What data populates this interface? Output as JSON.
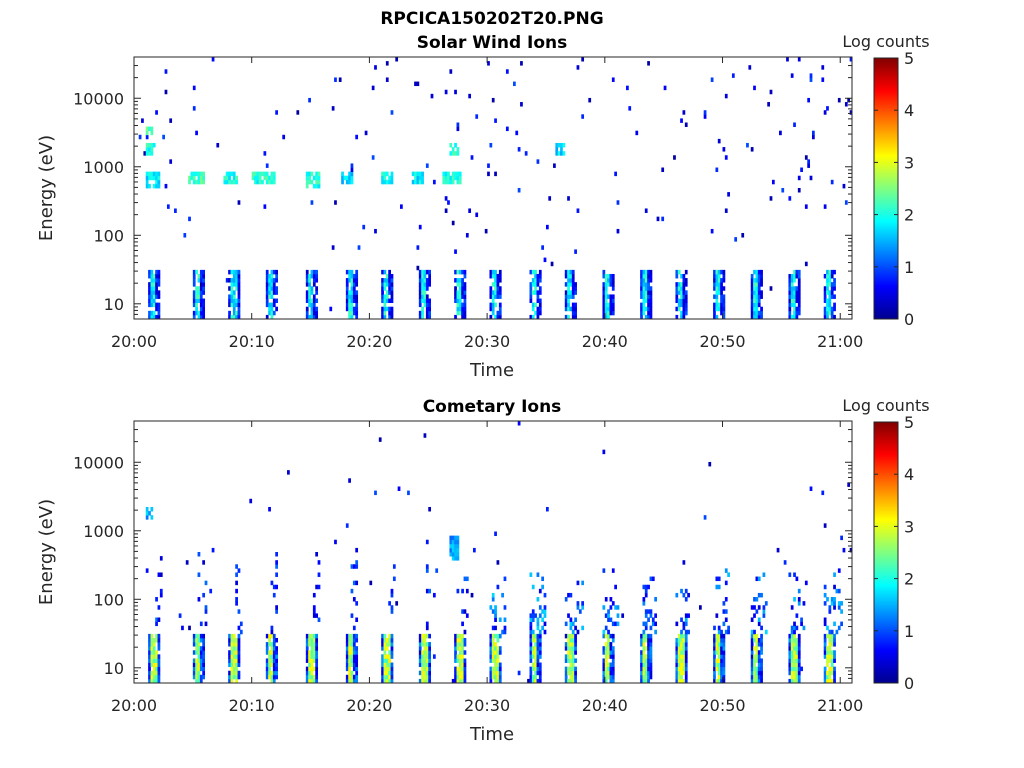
{
  "figure_title": "RPCICA150202T20.PNG",
  "colors": {
    "colormap": [
      "#00008f",
      "#0000ff",
      "#0080ff",
      "#00ffff",
      "#80ff80",
      "#ffff00",
      "#ff8000",
      "#ff0000",
      "#800000"
    ],
    "axis": "#262626"
  },
  "chart_data": [
    {
      "type": "heatmap",
      "title": "Solar Wind Ions",
      "xlabel": "Time",
      "ylabel": "Energy (eV)",
      "x_ticks": [
        "20:00",
        "20:10",
        "20:20",
        "20:30",
        "20:40",
        "20:50",
        "21:00"
      ],
      "x_range_minutes": [
        0,
        61
      ],
      "y_scale": "log",
      "y_range": [
        6,
        40000
      ],
      "y_ticks": [
        10,
        100,
        1000,
        10000
      ],
      "y_tick_labels": [
        "10",
        "100",
        "1000",
        "10000"
      ],
      "colorbar": {
        "label": "Log counts",
        "range": [
          0,
          5
        ],
        "ticks": [
          "0",
          "1",
          "2",
          "3",
          "4",
          "5"
        ]
      },
      "sweep_start_minutes": [
        1.2,
        4.9,
        8.0,
        11.1,
        14.6,
        17.9,
        21.0,
        24.1,
        27.2,
        30.2,
        33.5,
        36.6,
        39.7,
        42.9,
        46.0,
        49.1,
        52.3,
        55.6,
        58.6
      ],
      "bursts": [
        {
          "t_start": 1.0,
          "t_end": 2.2,
          "e_min": 500,
          "e_max": 900,
          "level": 1.8
        },
        {
          "t_start": 1.0,
          "t_end": 1.8,
          "e_min": 1500,
          "e_max": 2200,
          "level": 2.0
        },
        {
          "t_start": 1.0,
          "t_end": 1.6,
          "e_min": 3000,
          "e_max": 3800,
          "level": 2.2
        },
        {
          "t_start": 4.5,
          "t_end": 6.0,
          "e_min": 550,
          "e_max": 850,
          "level": 2.2
        },
        {
          "t_start": 7.5,
          "t_end": 8.8,
          "e_min": 550,
          "e_max": 850,
          "level": 2.0
        },
        {
          "t_start": 10.0,
          "t_end": 11.5,
          "e_min": 550,
          "e_max": 850,
          "level": 2.0
        },
        {
          "t_start": 11.1,
          "t_end": 12.0,
          "e_min": 550,
          "e_max": 850,
          "level": 2.1
        },
        {
          "t_start": 14.5,
          "t_end": 15.8,
          "e_min": 500,
          "e_max": 800,
          "level": 2.0
        },
        {
          "t_start": 17.5,
          "t_end": 18.5,
          "e_min": 550,
          "e_max": 850,
          "level": 1.6
        },
        {
          "t_start": 21.0,
          "t_end": 22.0,
          "e_min": 600,
          "e_max": 850,
          "level": 1.9
        },
        {
          "t_start": 23.5,
          "t_end": 24.5,
          "e_min": 600,
          "e_max": 850,
          "level": 1.8
        },
        {
          "t_start": 26.2,
          "t_end": 27.8,
          "e_min": 550,
          "e_max": 850,
          "level": 2.0
        },
        {
          "t_start": 26.8,
          "t_end": 27.6,
          "e_min": 1500,
          "e_max": 2100,
          "level": 2.0
        },
        {
          "t_start": 35.8,
          "t_end": 36.6,
          "e_min": 1500,
          "e_max": 2100,
          "level": 1.7
        }
      ]
    },
    {
      "type": "heatmap",
      "title": "Cometary Ions",
      "xlabel": "Time",
      "ylabel": "Energy (eV)",
      "x_ticks": [
        "20:00",
        "20:10",
        "20:20",
        "20:30",
        "20:40",
        "20:50",
        "21:00"
      ],
      "x_range_minutes": [
        0,
        61
      ],
      "y_scale": "log",
      "y_range": [
        6,
        40000
      ],
      "y_ticks": [
        10,
        100,
        1000,
        10000
      ],
      "y_tick_labels": [
        "10",
        "100",
        "1000",
        "10000"
      ],
      "colorbar": {
        "label": "Log counts",
        "range": [
          0,
          5
        ],
        "ticks": [
          "0",
          "1",
          "2",
          "3",
          "4",
          "5"
        ]
      },
      "sweep_start_minutes": [
        1.2,
        4.9,
        8.0,
        11.1,
        14.6,
        17.9,
        21.0,
        24.1,
        27.2,
        30.2,
        33.5,
        36.6,
        39.7,
        42.9,
        46.0,
        49.1,
        52.3,
        55.6,
        58.6
      ],
      "bursts": [
        {
          "t_start": 1.0,
          "t_end": 1.6,
          "e_min": 1500,
          "e_max": 2100,
          "level": 1.5
        },
        {
          "t_start": 26.8,
          "t_end": 27.6,
          "e_min": 350,
          "e_max": 800,
          "level": 1.4
        }
      ]
    }
  ]
}
